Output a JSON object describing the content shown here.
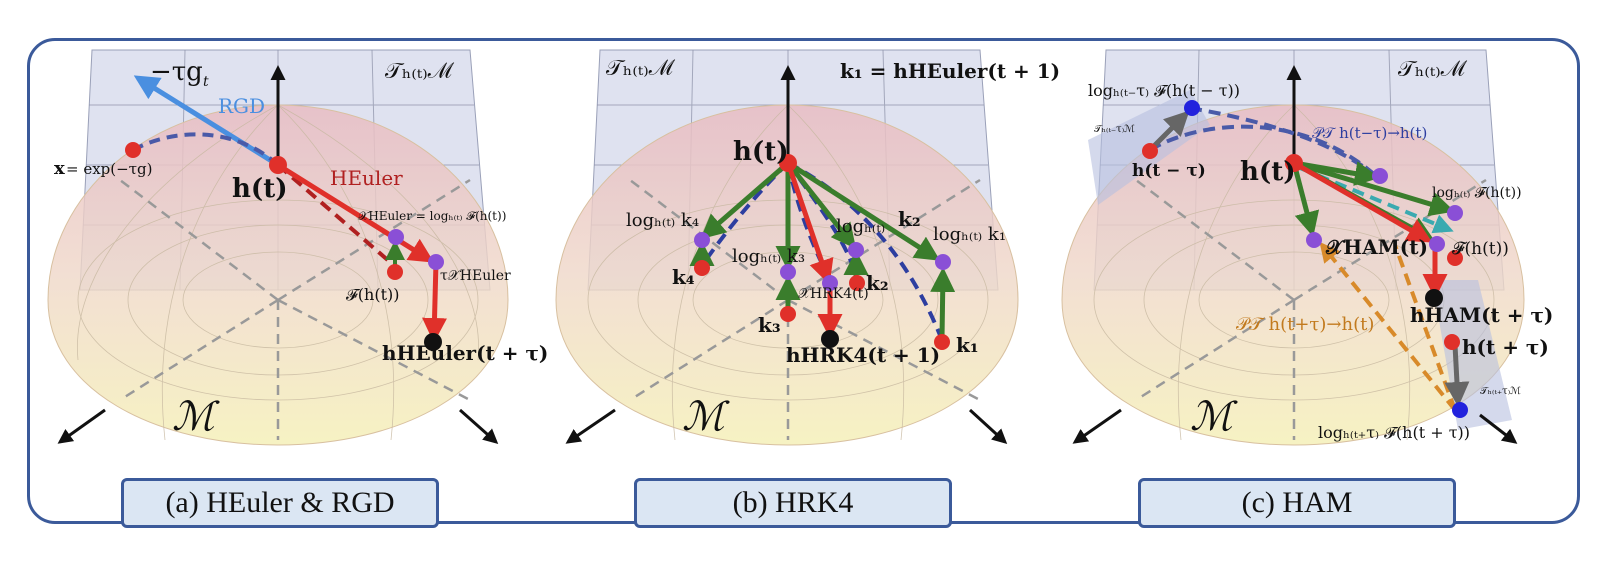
{
  "colors": {
    "frame": "#3b5a9a",
    "caption_bg": "#dbe6f3",
    "tangent_plane": "#c5cbe3",
    "manifold_top": "#e6c0c4",
    "manifold_bottom": "#f4efb8",
    "red": "#e0302a",
    "green": "#3a7d2c",
    "blue_dash": "#4a5aa8",
    "purple": "#8a4fd6",
    "blue_arrow": "#4a8fe0",
    "orange": "#d88a2a",
    "teal": "#3aaab0",
    "grey_arrow": "#666666"
  },
  "panels": [
    {
      "caption": "(a) HEuler & RGD",
      "labels": {
        "tangent_space": "𝒯ₕ₍ₜ₎ℳ",
        "neg_grad": "−τg",
        "neg_grad_sub": "t",
        "rgd": "RGD",
        "x_next": "x",
        "x_next_rest": " = exp(−τg)",
        "h_t": "h(t)",
        "heuler": "HEuler",
        "chi_heuler": "𝒳HEuler = logₕ₍ₜ₎ 𝓕(h(t))",
        "tau_chi": "τ𝒳HEuler",
        "F_h": "𝓕(h(t))",
        "h_heuler_next": "hHEuler(t + τ)",
        "manifold": "ℳ"
      }
    },
    {
      "caption": "(b) HRK4",
      "labels": {
        "tangent_space": "𝒯ₕ₍ₜ₎ℳ",
        "k1_def": "k₁ = hHEuler(t + 1)",
        "h_t": "h(t)",
        "log_k4": "logₕ₍ₜ₎ k₄",
        "log_k3": "logₕ₍ₜ₎ k₃",
        "log_k3b": "logₕ₍ₜ₎",
        "k2_lbl": "k₂",
        "log_k1": "logₕ₍ₜ₎ k₁",
        "k4": "k₄",
        "k3": "k₃",
        "k2": "k₂",
        "k1": "k₁",
        "chi_hrk4": "𝒳HRK4(t)",
        "h_hrk4_next": "hHRK4(t + 1)",
        "manifold": "ℳ"
      }
    },
    {
      "caption": "(c) HAM",
      "labels": {
        "tangent_space": "𝒯ₕ₍ₜ₎ℳ",
        "log_prev": "logₕ₍ₜ₋τ₎ 𝓕(h(t − τ))",
        "tangent_prev": "𝒯ₕ₍ₜ₋τ₎ℳ",
        "pt_forward": "𝒫𝒯 h(t−τ)→h(t)",
        "h_prev": "h(t − τ)",
        "h_t": "h(t)",
        "log_F": "logₕ₍ₜ₎ 𝓕(h(t))",
        "chi_ham": "𝒳HAM(t)",
        "F_h": "𝓕(h(t))",
        "h_ham_next": "hHAM(t + τ)",
        "pt_backward": "𝒫𝒯 h(t+τ)→h(t)",
        "h_next": "h(t + τ)",
        "tangent_next": "𝒯ₕ₍ₜ₊τ₎ℳ",
        "log_next": "logₕ₍ₜ₊τ₎ 𝓕(h(t + τ))",
        "manifold": "ℳ"
      }
    }
  ]
}
